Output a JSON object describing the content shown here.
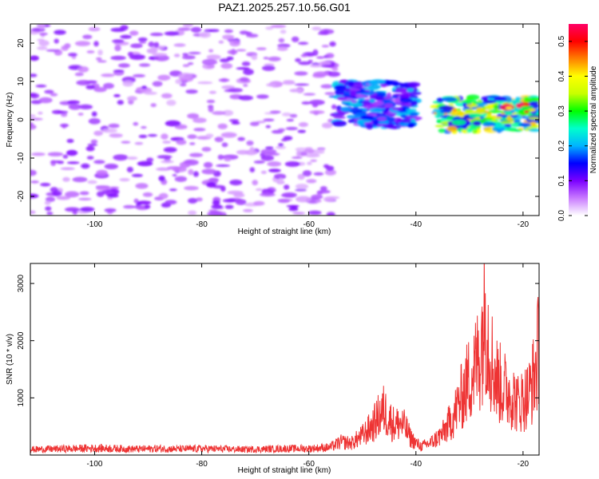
{
  "figure": {
    "title": "PAZ1.2025.257.10.56.G01"
  },
  "chart_data": [
    {
      "type": "heatmap",
      "xlabel": "Height of straight line (km)",
      "ylabel": "Frequency (Hz)",
      "xlim": [
        -112,
        -17
      ],
      "ylim": [
        -25,
        25
      ],
      "x_ticks": [
        "-100",
        "-80",
        "-60",
        "-40",
        "-20"
      ],
      "x_tick_values": [
        -100,
        -80,
        -60,
        -40,
        -20
      ],
      "y_ticks": [
        "20",
        "10",
        "0",
        "-10",
        "-20"
      ],
      "y_tick_values": [
        20,
        10,
        0,
        -10,
        -20
      ],
      "colorbar": {
        "label": "Normalized spectral amplitude",
        "range": [
          0,
          0.55
        ],
        "ticks": [
          "0.0",
          "0.1",
          "0.2",
          "0.3",
          "0.4",
          "0.5"
        ],
        "tick_values": [
          0,
          0.1,
          0.2,
          0.3,
          0.4,
          0.5
        ],
        "colormap": [
          "#ffffff",
          "#c97bff",
          "#7b00ff",
          "#0000ff",
          "#00b4ff",
          "#00ffcc",
          "#00ff00",
          "#c8ff00",
          "#ffff00",
          "#ff8000",
          "#ff0000",
          "#ff0066"
        ]
      },
      "features": [
        {
          "x_range": [
            -112,
            -55
          ],
          "y_range": [
            -25,
            25
          ],
          "level": 0.08,
          "description": ""
        },
        {
          "x_range": [
            -55,
            -40
          ],
          "y_range": [
            -2,
            10
          ],
          "level": 0.18,
          "description": ""
        },
        {
          "x_range": [
            -36,
            -17
          ],
          "y_range": [
            -3,
            6
          ],
          "level": 0.35,
          "description": ""
        },
        {
          "x_range": [
            -23,
            -19
          ],
          "y_range": [
            2,
            4
          ],
          "level": 0.52,
          "description": ""
        }
      ]
    },
    {
      "type": "line",
      "xlabel": "Height of straight line (km)",
      "ylabel": "SNR (10 * v/v)",
      "xlim": [
        -112,
        -17
      ],
      "ylim": [
        0,
        3350
      ],
      "x_ticks": [
        "-100",
        "-80",
        "-60",
        "-40",
        "-20"
      ],
      "x_tick_values": [
        -100,
        -80,
        -60,
        -40,
        -20
      ],
      "y_ticks": [
        "3000",
        "2000",
        "1000"
      ],
      "y_tick_values": [
        3000,
        2000,
        1000
      ],
      "series": [
        {
          "color": "#ee3333",
          "x": [
            -112,
            -108,
            -104,
            -100,
            -96,
            -92,
            -88,
            -84,
            -80,
            -76,
            -72,
            -68,
            -64,
            -60,
            -56,
            -54,
            -52,
            -50,
            -48,
            -47,
            -46,
            -45,
            -44,
            -43,
            -42,
            -41,
            -40,
            -39,
            -38,
            -37,
            -36,
            -35,
            -34,
            -33,
            -32,
            -31,
            -30,
            -29,
            -28,
            -27.5,
            -27,
            -26.5,
            -26,
            -25,
            -24,
            -23,
            -22,
            -21,
            -20,
            -19,
            -18,
            -17
          ],
          "y": [
            130,
            140,
            150,
            160,
            150,
            140,
            150,
            140,
            150,
            140,
            130,
            140,
            150,
            150,
            180,
            300,
            280,
            450,
            700,
            900,
            1050,
            850,
            700,
            750,
            650,
            400,
            280,
            200,
            250,
            300,
            400,
            500,
            700,
            900,
            1200,
            1500,
            1800,
            2000,
            2400,
            3000,
            3350,
            2800,
            2300,
            1800,
            1600,
            1500,
            1400,
            1200,
            1300,
            1400,
            1800,
            2500
          ]
        }
      ]
    }
  ]
}
